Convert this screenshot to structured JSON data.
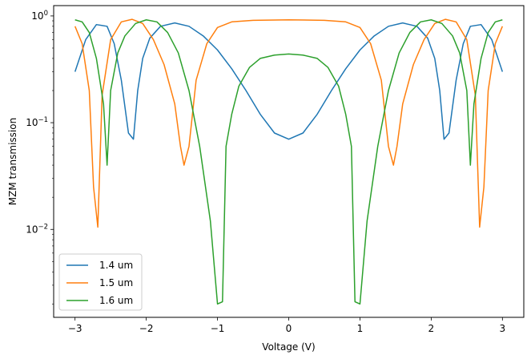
{
  "chart_data": {
    "type": "line",
    "title": "",
    "xlabel": "Voltage (V)",
    "ylabel": "MZM transmission",
    "yscale": "log",
    "xlim": [
      -3.3,
      3.3
    ],
    "ylim": [
      0.0015,
      1.25
    ],
    "grid": false,
    "legend_position": "lower-left",
    "x_ticks": [
      {
        "value": -3,
        "label": "−3"
      },
      {
        "value": -2,
        "label": "−2"
      },
      {
        "value": -1,
        "label": "−1"
      },
      {
        "value": 0,
        "label": "0"
      },
      {
        "value": 1,
        "label": "1"
      },
      {
        "value": 2,
        "label": "2"
      },
      {
        "value": 3,
        "label": "3"
      }
    ],
    "y_ticks": [
      {
        "value": 1,
        "base": "10",
        "exp": "0"
      },
      {
        "value": 0.1,
        "base": "10",
        "exp": "−1"
      },
      {
        "value": 0.01,
        "base": "10",
        "exp": "−2"
      }
    ],
    "series": [
      {
        "name": "1.4 um",
        "color": "#1f77b4",
        "x": [
          -3.0,
          -2.85,
          -2.7,
          -2.55,
          -2.45,
          -2.35,
          -2.25,
          -2.18,
          -2.12,
          -2.05,
          -1.95,
          -1.8,
          -1.6,
          -1.4,
          -1.2,
          -1.0,
          -0.8,
          -0.6,
          -0.4,
          -0.2,
          0.0,
          0.2,
          0.4,
          0.6,
          0.8,
          1.0,
          1.2,
          1.4,
          1.6,
          1.8,
          1.95,
          2.05,
          2.12,
          2.18,
          2.25,
          2.35,
          2.45,
          2.55,
          2.7,
          2.85,
          3.0
        ],
        "y": [
          0.3,
          0.6,
          0.83,
          0.8,
          0.55,
          0.25,
          0.08,
          0.07,
          0.2,
          0.4,
          0.62,
          0.8,
          0.86,
          0.8,
          0.65,
          0.48,
          0.32,
          0.2,
          0.12,
          0.08,
          0.07,
          0.08,
          0.12,
          0.2,
          0.32,
          0.48,
          0.65,
          0.8,
          0.86,
          0.8,
          0.62,
          0.4,
          0.2,
          0.07,
          0.08,
          0.25,
          0.55,
          0.8,
          0.83,
          0.6,
          0.3
        ]
      },
      {
        "name": "1.5 um",
        "color": "#ff7f0e",
        "x": [
          -3.0,
          -2.9,
          -2.8,
          -2.74,
          -2.68,
          -2.62,
          -2.5,
          -2.35,
          -2.2,
          -2.05,
          -1.9,
          -1.75,
          -1.6,
          -1.52,
          -1.47,
          -1.4,
          -1.3,
          -1.15,
          -1.0,
          -0.8,
          -0.5,
          0.0,
          0.5,
          0.8,
          1.0,
          1.15,
          1.3,
          1.4,
          1.47,
          1.52,
          1.6,
          1.75,
          1.9,
          2.05,
          2.2,
          2.35,
          2.5,
          2.62,
          2.68,
          2.74,
          2.8,
          2.9,
          3.0
        ],
        "y": [
          0.8,
          0.55,
          0.2,
          0.025,
          0.0105,
          0.18,
          0.6,
          0.88,
          0.93,
          0.85,
          0.6,
          0.35,
          0.15,
          0.06,
          0.04,
          0.06,
          0.25,
          0.55,
          0.78,
          0.88,
          0.91,
          0.92,
          0.91,
          0.88,
          0.78,
          0.55,
          0.25,
          0.06,
          0.04,
          0.06,
          0.15,
          0.35,
          0.6,
          0.85,
          0.93,
          0.88,
          0.6,
          0.18,
          0.0105,
          0.025,
          0.2,
          0.55,
          0.8
        ]
      },
      {
        "name": "1.6 um",
        "color": "#2ca02c",
        "x": [
          -3.0,
          -2.9,
          -2.8,
          -2.7,
          -2.6,
          -2.55,
          -2.5,
          -2.4,
          -2.3,
          -2.15,
          -2.0,
          -1.85,
          -1.7,
          -1.55,
          -1.4,
          -1.25,
          -1.1,
          -1.0,
          -0.93,
          -0.88,
          -0.8,
          -0.7,
          -0.55,
          -0.4,
          -0.2,
          0.0,
          0.2,
          0.4,
          0.55,
          0.7,
          0.8,
          0.88,
          0.93,
          1.0,
          1.1,
          1.25,
          1.4,
          1.55,
          1.7,
          1.85,
          2.0,
          2.15,
          2.3,
          2.4,
          2.5,
          2.55,
          2.6,
          2.7,
          2.8,
          2.9,
          3.0
        ],
        "y": [
          0.92,
          0.88,
          0.7,
          0.4,
          0.15,
          0.04,
          0.2,
          0.45,
          0.65,
          0.85,
          0.92,
          0.88,
          0.7,
          0.45,
          0.2,
          0.06,
          0.012,
          0.002,
          0.0021,
          0.06,
          0.12,
          0.22,
          0.33,
          0.4,
          0.43,
          0.44,
          0.43,
          0.4,
          0.33,
          0.22,
          0.12,
          0.06,
          0.0021,
          0.002,
          0.012,
          0.06,
          0.2,
          0.45,
          0.7,
          0.88,
          0.92,
          0.85,
          0.65,
          0.45,
          0.2,
          0.04,
          0.15,
          0.4,
          0.7,
          0.88,
          0.92
        ]
      }
    ]
  }
}
